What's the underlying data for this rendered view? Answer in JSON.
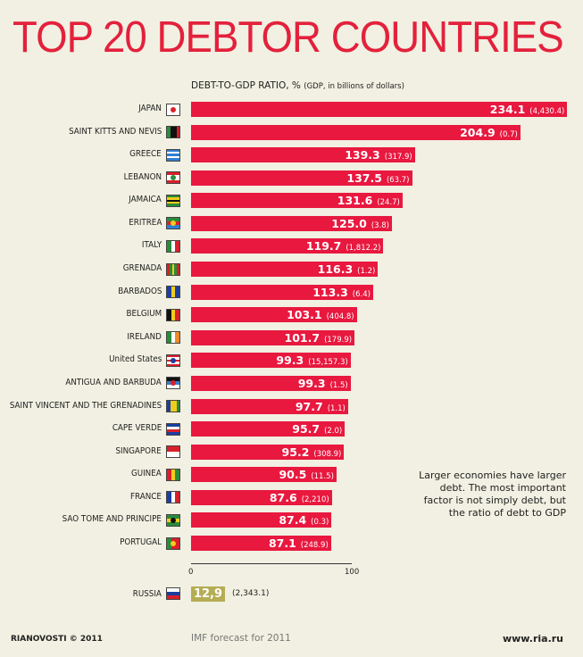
{
  "chart_data": {
    "type": "bar",
    "title": "TOP 20 DEBTOR COUNTRIES",
    "subtitle": "DEBT-TO-GDP RATIO, %",
    "subtitle_note": "(GDP, in billions of dollars)",
    "xlim": [
      0,
      100
    ],
    "x_ticks": [
      "0",
      "100"
    ],
    "bar_color": "#e8183f",
    "rows": [
      {
        "country": "JAPAN",
        "value": 234.1,
        "value_label": "234.1",
        "gdp": "(4,430.4)",
        "flag": {
          "dir": "row",
          "colors": [
            "#fff",
            "#fff"
          ],
          "dot": "#e0202a"
        }
      },
      {
        "country": "SAINT KITTS AND NEVIS",
        "value": 204.9,
        "value_label": "204.9",
        "gdp": "(0.7)",
        "flag": {
          "dir": "row",
          "colors": [
            "#2a8c3a",
            "#111",
            "#111",
            "#c8202a"
          ]
        }
      },
      {
        "country": "GREECE",
        "value": 139.3,
        "value_label": "139.3",
        "gdp": "(317.9)",
        "flag": {
          "dir": "column",
          "colors": [
            "#2f7fd1",
            "#fff",
            "#2f7fd1",
            "#fff",
            "#2f7fd1"
          ]
        }
      },
      {
        "country": "LEBANON",
        "value": 137.5,
        "value_label": "137.5",
        "gdp": "(63.7)",
        "flag": {
          "dir": "column",
          "colors": [
            "#d8202a",
            "#fff",
            "#fff",
            "#d8202a"
          ],
          "dot": "#2a8c3a"
        }
      },
      {
        "country": "JAMAICA",
        "value": 131.6,
        "value_label": "131.6",
        "gdp": "(24.7)",
        "flag": {
          "dir": "column",
          "colors": [
            "#2a8c3a",
            "#f2cc1a",
            "#111",
            "#f2cc1a",
            "#2a8c3a"
          ]
        }
      },
      {
        "country": "ERITREA",
        "value": 125.0,
        "value_label": "125.0",
        "gdp": "(3.8)",
        "flag": {
          "dir": "column",
          "colors": [
            "#2a8c3a",
            "#d8202a",
            "#2f7fd1"
          ],
          "dot": "#f2cc1a"
        }
      },
      {
        "country": "ITALY",
        "value": 119.7,
        "value_label": "119.7",
        "gdp": "(1,812.2)",
        "flag": {
          "dir": "row",
          "colors": [
            "#2a8c3a",
            "#fff",
            "#d8202a"
          ]
        }
      },
      {
        "country": "GRENADA",
        "value": 116.3,
        "value_label": "116.3",
        "gdp": "(1.2)",
        "flag": {
          "dir": "row",
          "colors": [
            "#d8202a",
            "#2a8c3a",
            "#f2cc1a",
            "#2a8c3a",
            "#d8202a"
          ]
        }
      },
      {
        "country": "BARBADOS",
        "value": 113.3,
        "value_label": "113.3",
        "gdp": "(6.4)",
        "flag": {
          "dir": "row",
          "colors": [
            "#1a3fa0",
            "#f2cc1a",
            "#1a3fa0"
          ]
        }
      },
      {
        "country": "BELGIUM",
        "value": 103.1,
        "value_label": "103.1",
        "gdp": "(404.8)",
        "flag": {
          "dir": "row",
          "colors": [
            "#111",
            "#f2cc1a",
            "#d8202a"
          ]
        }
      },
      {
        "country": "IRELAND",
        "value": 101.7,
        "value_label": "101.7",
        "gdp": "(179.9)",
        "flag": {
          "dir": "row",
          "colors": [
            "#2a8c3a",
            "#fff",
            "#f08a24"
          ]
        }
      },
      {
        "country": "United States",
        "value": 99.3,
        "value_label": "99.3",
        "gdp": "(15,157.3)",
        "flag": {
          "dir": "column",
          "colors": [
            "#d8202a",
            "#fff",
            "#d8202a",
            "#fff",
            "#d8202a"
          ],
          "dot": "#1a3fa0"
        }
      },
      {
        "country": "ANTIGUA AND BARBUDA",
        "value": 99.3,
        "value_label": "99.3",
        "gdp": "(1.5)",
        "flag": {
          "dir": "column",
          "colors": [
            "#111",
            "#2f7fd1",
            "#fff"
          ],
          "dot": "#d8202a"
        }
      },
      {
        "country": "SAINT VINCENT AND THE GRENADINES",
        "value": 97.7,
        "value_label": "97.7",
        "gdp": "(1.1)",
        "flag": {
          "dir": "row",
          "colors": [
            "#1a3fa0",
            "#f2cc1a",
            "#f2cc1a",
            "#2a8c3a"
          ]
        }
      },
      {
        "country": "CAPE VERDE",
        "value": 95.7,
        "value_label": "95.7",
        "gdp": "(2.0)",
        "flag": {
          "dir": "column",
          "colors": [
            "#1a3fa0",
            "#fff",
            "#d8202a",
            "#1a3fa0"
          ]
        }
      },
      {
        "country": "SINGAPORE",
        "value": 95.2,
        "value_label": "95.2",
        "gdp": "(308.9)",
        "flag": {
          "dir": "column",
          "colors": [
            "#d8202a",
            "#fff"
          ]
        }
      },
      {
        "country": "GUINEA",
        "value": 90.5,
        "value_label": "90.5",
        "gdp": "(11.5)",
        "flag": {
          "dir": "row",
          "colors": [
            "#d8202a",
            "#f2cc1a",
            "#2a8c3a"
          ]
        }
      },
      {
        "country": "FRANCE",
        "value": 87.6,
        "value_label": "87.6",
        "gdp": "(2,210)",
        "flag": {
          "dir": "row",
          "colors": [
            "#1a3fa0",
            "#fff",
            "#d8202a"
          ]
        }
      },
      {
        "country": "SAO TOME AND PRINCIPE",
        "value": 87.4,
        "value_label": "87.4",
        "gdp": "(0.3)",
        "flag": {
          "dir": "column",
          "colors": [
            "#2a8c3a",
            "#f2cc1a",
            "#2a8c3a"
          ],
          "dot": "#111"
        }
      },
      {
        "country": "PORTUGAL",
        "value": 87.1,
        "value_label": "87.1",
        "gdp": "(248.9)",
        "flag": {
          "dir": "row",
          "colors": [
            "#2a8c3a",
            "#d8202a",
            "#d8202a"
          ],
          "dot": "#f2cc1a"
        }
      }
    ],
    "extra": {
      "country": "RUSSIA",
      "value": 12.9,
      "value_label": "12,9",
      "gdp": "(2,343.1)",
      "bar_color": "#b5ad53",
      "flag": {
        "dir": "column",
        "colors": [
          "#fff",
          "#1a3fa0",
          "#d8202a"
        ]
      }
    }
  },
  "note": "Larger economies have larger debt. The most important factor is not simply debt, but the ratio of debt to GDP",
  "source": "IMF forecast for 2011",
  "logo": "RIANOVOSTI © 2011",
  "site": "www.ria.ru"
}
